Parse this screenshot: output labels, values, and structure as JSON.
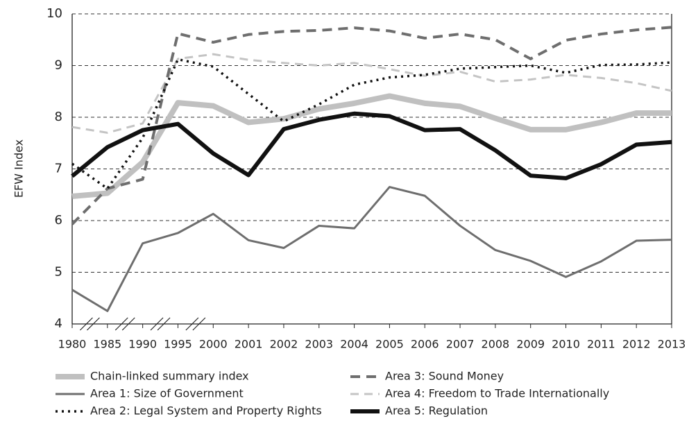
{
  "chart_data": {
    "type": "line",
    "ylabel": "EFW Index",
    "categories": [
      "1980",
      "1985",
      "1990",
      "1995",
      "2000",
      "2001",
      "2002",
      "2003",
      "2004",
      "2005",
      "2006",
      "2007",
      "2008",
      "2009",
      "2010",
      "2011",
      "2012",
      "2013"
    ],
    "ylim": [
      4,
      10
    ],
    "yticks": [
      4,
      5,
      6,
      7,
      8,
      9,
      10
    ],
    "grid": true,
    "series": [
      {
        "name": "Chain-linked summary index",
        "color": "#c0c0c0",
        "line_style": "solid",
        "values": [
          6.47,
          6.53,
          7.13,
          8.28,
          8.22,
          7.9,
          7.97,
          8.16,
          8.27,
          8.41,
          8.27,
          8.21,
          7.98,
          7.76,
          7.76,
          7.9,
          8.08,
          8.08
        ]
      },
      {
        "name": "Area 1: Size of Government",
        "color": "#6e6e6e",
        "line_style": "solid",
        "values": [
          4.66,
          4.25,
          5.56,
          5.76,
          6.13,
          5.62,
          5.47,
          5.9,
          5.85,
          6.65,
          6.48,
          5.9,
          5.43,
          5.22,
          4.91,
          5.21,
          5.61,
          5.63
        ]
      },
      {
        "name": "Area 2: Legal System and Property Rights",
        "color": "#111111",
        "line_style": "dotted",
        "values": [
          7.1,
          6.62,
          7.6,
          9.12,
          8.98,
          8.45,
          7.92,
          8.25,
          8.63,
          8.77,
          8.82,
          8.94,
          8.97,
          9.0,
          8.86,
          9.01,
          9.02,
          9.06
        ]
      },
      {
        "name": "Area 3: Sound Money",
        "color": "#6e6e6e",
        "line_style": "dashed",
        "values": [
          5.93,
          6.62,
          6.8,
          9.62,
          9.45,
          9.6,
          9.66,
          9.68,
          9.73,
          9.67,
          9.53,
          9.61,
          9.5,
          9.13,
          9.49,
          9.61,
          9.69,
          9.74
        ]
      },
      {
        "name": "Area 4: Freedom to Trade Internationally",
        "color": "#c4c4c4",
        "line_style": "dashed",
        "values": [
          7.81,
          7.7,
          7.88,
          9.13,
          9.22,
          9.11,
          9.05,
          9.0,
          9.05,
          8.93,
          8.8,
          8.88,
          8.69,
          8.73,
          8.82,
          8.76,
          8.66,
          8.51
        ]
      },
      {
        "name": "Area 5: Regulation",
        "color": "#111111",
        "line_style": "solid",
        "values": [
          6.86,
          7.42,
          7.75,
          7.87,
          7.3,
          6.88,
          7.77,
          7.95,
          8.07,
          8.02,
          7.75,
          7.77,
          7.36,
          6.87,
          6.82,
          7.09,
          7.47,
          7.52
        ]
      }
    ]
  }
}
